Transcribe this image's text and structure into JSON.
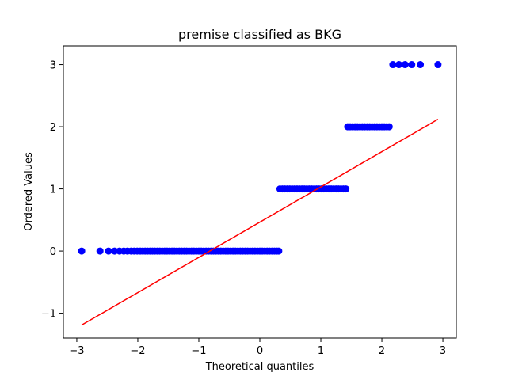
{
  "chart_data": {
    "type": "scatter",
    "title": "premise classified as BKG",
    "xlabel": "Theoretical quantiles",
    "ylabel": "Ordered Values",
    "xlim": [
      -3.22,
      3.22
    ],
    "ylim": [
      -1.4,
      3.3
    ],
    "xticks": [
      -3,
      -2,
      -1,
      0,
      1,
      2,
      3
    ],
    "yticks": [
      -1,
      0,
      1,
      2,
      3
    ],
    "xtick_labels": [
      "−3",
      "−2",
      "−1",
      "0",
      "1",
      "2",
      "3"
    ],
    "ytick_labels": [
      "−1",
      "0",
      "1",
      "2",
      "3"
    ],
    "grid": false,
    "series": [
      {
        "kind": "points",
        "color": "#0000ff",
        "points_by_level": [
          {
            "y": 0,
            "x": [
              -2.92,
              -2.62,
              -2.48,
              -2.38,
              -2.3,
              -2.23,
              -2.17,
              -2.11,
              -2.06,
              -2.01,
              -1.96,
              -1.92,
              -1.88,
              -1.84,
              -1.8,
              -1.76,
              -1.72,
              -1.68,
              -1.64,
              -1.6,
              -1.56,
              -1.52,
              -1.48,
              -1.44,
              -1.4,
              -1.36,
              -1.32,
              -1.28,
              -1.24,
              -1.2,
              -1.16,
              -1.12,
              -1.08,
              -1.04,
              -1.0,
              -0.96,
              -0.92,
              -0.88,
              -0.84,
              -0.8,
              -0.76,
              -0.72,
              -0.68,
              -0.64,
              -0.6,
              -0.56,
              -0.52,
              -0.48,
              -0.44,
              -0.4,
              -0.36,
              -0.32,
              -0.28,
              -0.24,
              -0.2,
              -0.16,
              -0.12,
              -0.08,
              -0.04,
              0.0,
              0.04,
              0.08,
              0.12,
              0.16,
              0.2,
              0.24,
              0.28,
              0.31
            ]
          },
          {
            "y": 1,
            "x": [
              0.33,
              0.37,
              0.41,
              0.45,
              0.49,
              0.53,
              0.57,
              0.61,
              0.65,
              0.69,
              0.73,
              0.77,
              0.81,
              0.85,
              0.89,
              0.93,
              0.97,
              1.01,
              1.05,
              1.09,
              1.13,
              1.17,
              1.21,
              1.25,
              1.29,
              1.33,
              1.37,
              1.41
            ]
          },
          {
            "y": 2,
            "x": [
              1.44,
              1.48,
              1.52,
              1.56,
              1.6,
              1.64,
              1.68,
              1.72,
              1.76,
              1.8,
              1.84,
              1.88,
              1.92,
              1.96,
              2.0,
              2.04,
              2.08,
              2.12
            ]
          },
          {
            "y": 3,
            "x": [
              2.18,
              2.28,
              2.38,
              2.49,
              2.63,
              2.92
            ]
          }
        ]
      },
      {
        "kind": "fit-line",
        "color": "#ff0000",
        "x": [
          -2.92,
          2.92
        ],
        "y": [
          -1.19,
          2.12
        ]
      }
    ]
  }
}
